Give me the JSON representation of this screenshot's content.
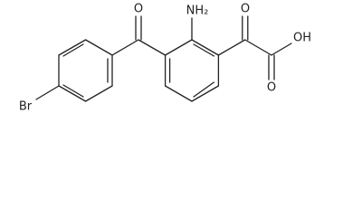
{
  "atoms": {
    "ketone_oxygen": "O",
    "amine": "NH₂",
    "keto_oxygen": "O",
    "acid_carbonyl_oxygen": "O",
    "hydroxyl": "OH",
    "bromine": "Br"
  }
}
